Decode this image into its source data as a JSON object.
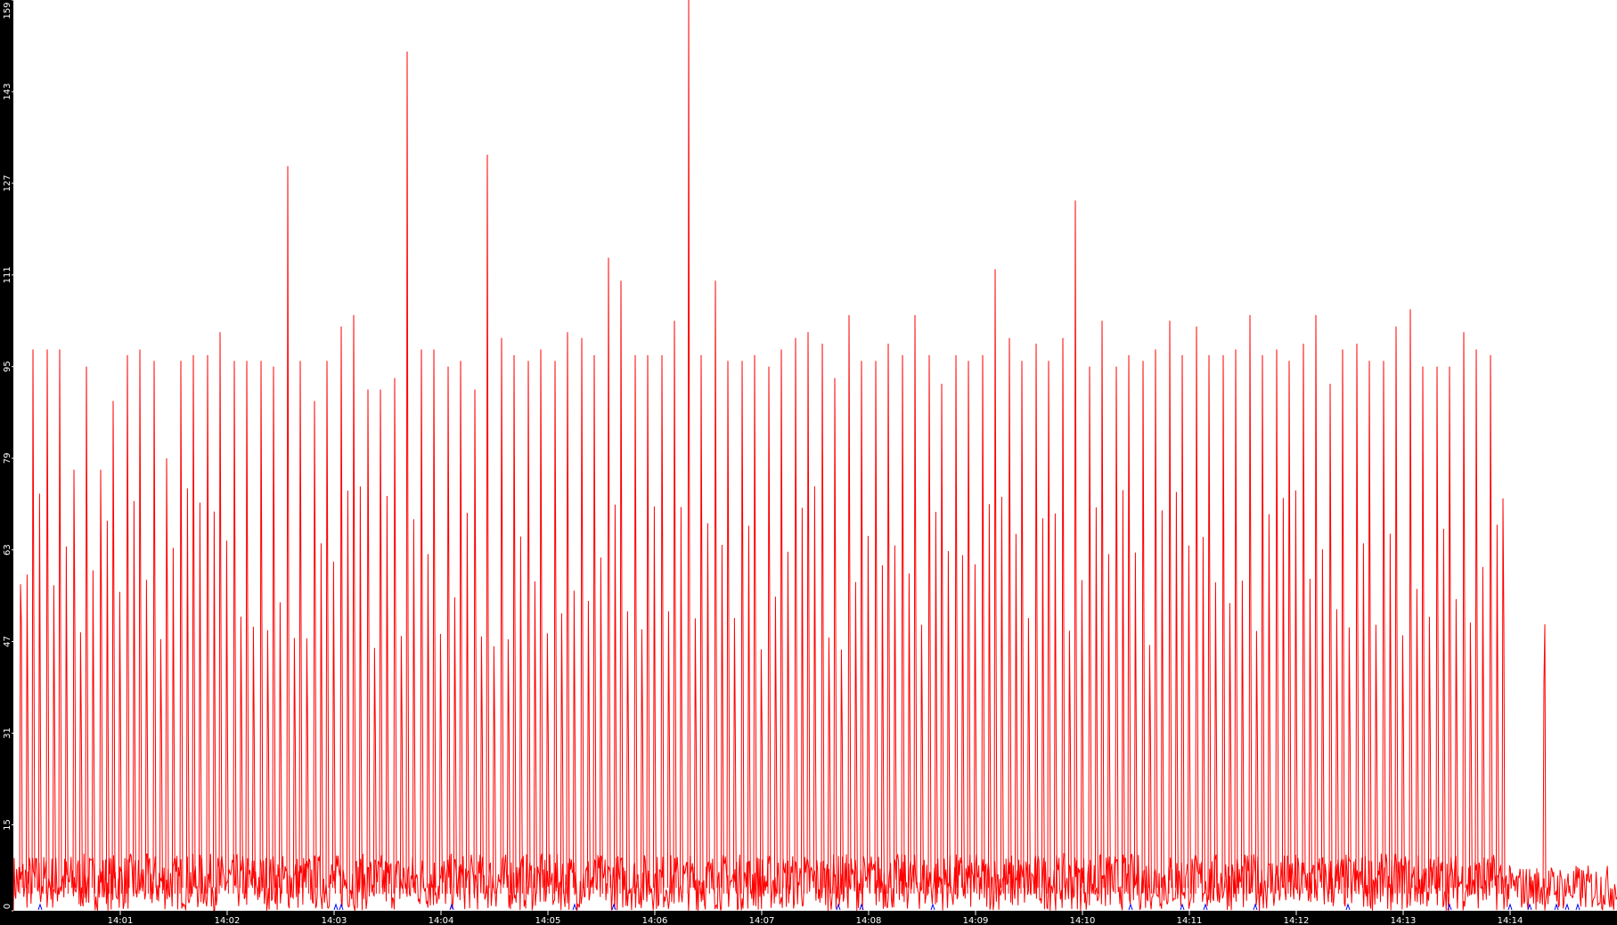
{
  "chart_data": {
    "type": "line",
    "title": "",
    "xlabel": "",
    "ylabel": "",
    "xlim": [
      "14:00",
      "14:15"
    ],
    "ylim": [
      0,
      159
    ],
    "grid": false,
    "legend": "none",
    "y_ticks": [
      "0",
      "15",
      "31",
      "47",
      "63",
      "79",
      "95",
      "111",
      "127",
      "143",
      "159"
    ],
    "x_ticks": [
      "14:01",
      "14:02",
      "14:03",
      "14:04",
      "14:05",
      "14:06",
      "14:07",
      "14:08",
      "14:09",
      "14:10",
      "14:11",
      "14:12",
      "14:13",
      "14:14"
    ],
    "colors": {
      "series": "#ff0000",
      "markers": "#0000ff",
      "axis_bg": "#000000",
      "axis_text": "#ffffff",
      "plot_bg": "#ffffff"
    },
    "series": [
      {
        "peak_seconds_in_minute": [
          4,
          11,
          19,
          26,
          34,
          41,
          49,
          56
        ],
        "peaks_by_minute": [
          {
            "minute": "14:00",
            "values": [
              57,
              98,
              98,
              98,
              77,
              95,
              77,
              89
            ]
          },
          {
            "minute": "14:01",
            "values": [
              97,
              98,
              96,
              79,
              96,
              97,
              97,
              101
            ]
          },
          {
            "minute": "14:02",
            "values": [
              96,
              96,
              96,
              95,
              130,
              96,
              89,
              96
            ]
          },
          {
            "minute": "14:03",
            "values": [
              102,
              104,
              91,
              91,
              93,
              150,
              98,
              98
            ]
          },
          {
            "minute": "14:04",
            "values": [
              95,
              96,
              91,
              132,
              100,
              97,
              96,
              98
            ]
          },
          {
            "minute": "14:05",
            "values": [
              96,
              101,
              100,
              97,
              114,
              110,
              97,
              97
            ]
          },
          {
            "minute": "14:06",
            "values": [
              97,
              103,
              159,
              97,
              110,
              96,
              96,
              97
            ]
          },
          {
            "minute": "14:07",
            "values": [
              95,
              98,
              100,
              101,
              99,
              93,
              104,
              96
            ]
          },
          {
            "minute": "14:08",
            "values": [
              96,
              99,
              97,
              104,
              97,
              92,
              97,
              96
            ]
          },
          {
            "minute": "14:09",
            "values": [
              97,
              112,
              100,
              96,
              99,
              96,
              100,
              124
            ]
          },
          {
            "minute": "14:10",
            "values": [
              95,
              103,
              95,
              97,
              96,
              98,
              103,
              97
            ]
          },
          {
            "minute": "14:11",
            "values": [
              102,
              97,
              97,
              98,
              104,
              97,
              98,
              96
            ]
          },
          {
            "minute": "14:12",
            "values": [
              99,
              104,
              92,
              98,
              99,
              96,
              96,
              102
            ]
          },
          {
            "minute": "14:13",
            "values": [
              105,
              95,
              95,
              95,
              101,
              98,
              97,
              72
            ]
          },
          {
            "minute": "14:14",
            "values": [
              null,
              null,
              40,
              null,
              null,
              null,
              null,
              null
            ]
          }
        ],
        "secondary_peak_range": [
          45,
          75
        ],
        "baseline_range": [
          0,
          10
        ]
      }
    ],
    "event_markers": [
      "14:00:15",
      "14:03:01",
      "14:03:04",
      "14:04:06",
      "14:05:15",
      "14:05:37",
      "14:07:43",
      "14:07:56",
      "14:08:36",
      "14:10:27",
      "14:10:56",
      "14:11:09",
      "14:11:37",
      "14:12:29",
      "14:13:26",
      "14:14:00",
      "14:14:11",
      "14:14:26",
      "14:14:32",
      "14:14:38"
    ]
  }
}
